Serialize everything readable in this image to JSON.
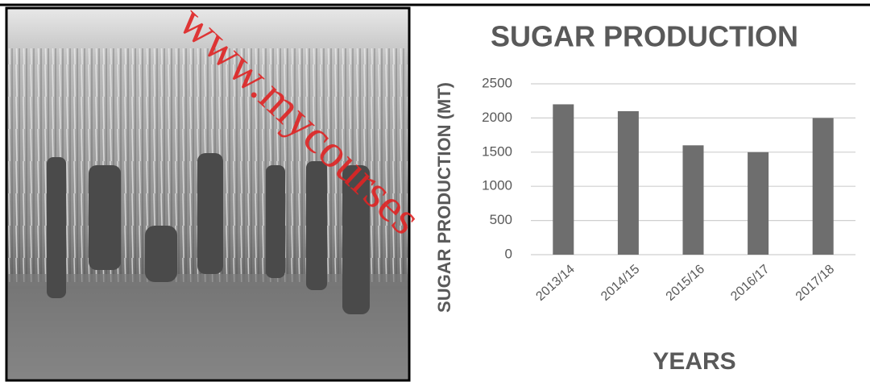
{
  "chart_data": {
    "type": "bar",
    "title": "SUGAR PRODUCTION",
    "y_label": "SUGAR PRODUCTION  (MT)",
    "x_label": "YEARS",
    "categories": [
      "2013/14",
      "2014/15",
      "2015/16",
      "2016/17",
      "2017/18"
    ],
    "values": [
      2200,
      2100,
      1600,
      1500,
      2000
    ],
    "color": "#6e6e6e",
    "ylim": [
      0,
      2500
    ],
    "yticks": [
      0,
      500,
      1000,
      1500,
      2000,
      2500
    ],
    "grid": true
  },
  "watermark": "www.mycourses"
}
